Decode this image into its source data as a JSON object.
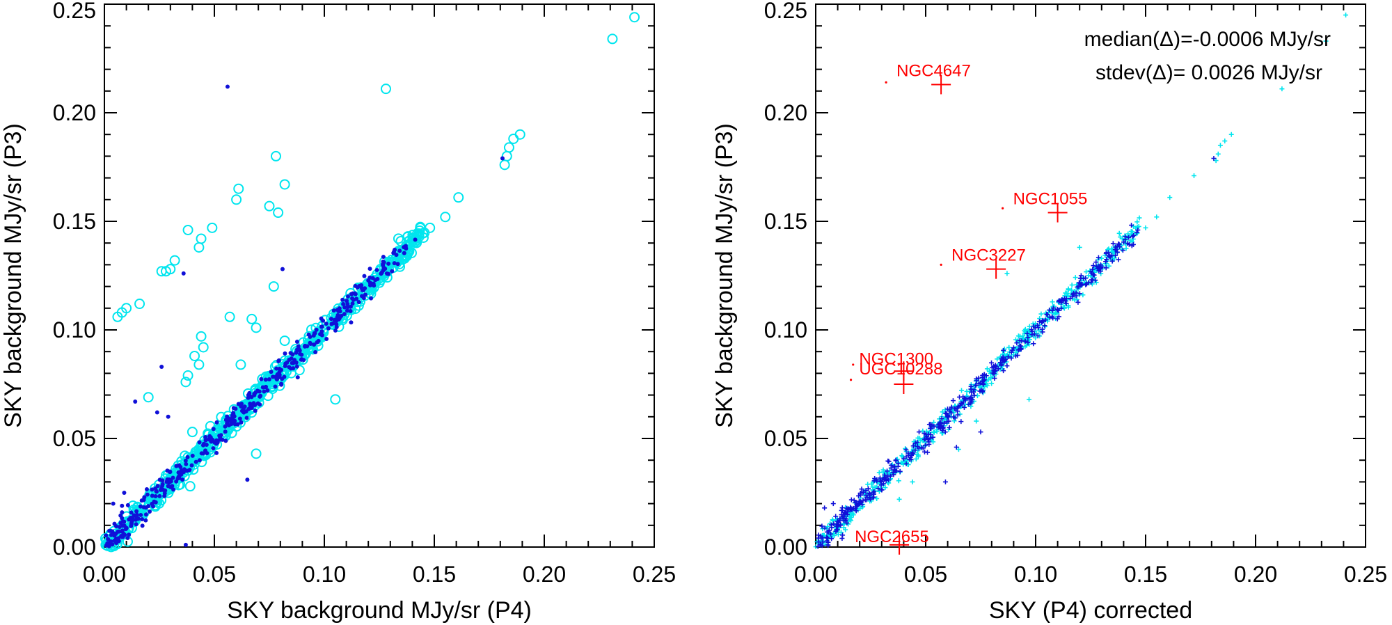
{
  "chart_data": [
    {
      "type": "scatter",
      "xlabel": "SKY background MJy/sr (P4)",
      "ylabel": "SKY background MJy/sr (P3)",
      "xlim": [
        0,
        0.25
      ],
      "ylim": [
        0,
        0.25
      ],
      "xticks": [
        "0.00",
        "0.05",
        "0.10",
        "0.15",
        "0.20",
        "0.25"
      ],
      "yticks": [
        "0.00",
        "0.05",
        "0.10",
        "0.15",
        "0.20",
        "0.25"
      ],
      "series": [
        {
          "name": "open circles",
          "marker": "circle-open",
          "color": "#00e5ee",
          "points": [
            [
              0.241,
              0.244
            ],
            [
              0.231,
              0.234
            ],
            [
              0.128,
              0.211
            ],
            [
              0.078,
              0.18
            ],
            [
              0.082,
              0.167
            ],
            [
              0.061,
              0.165
            ],
            [
              0.06,
              0.16
            ],
            [
              0.075,
              0.157
            ],
            [
              0.079,
              0.154
            ],
            [
              0.049,
              0.147
            ],
            [
              0.038,
              0.146
            ],
            [
              0.044,
              0.142
            ],
            [
              0.043,
              0.138
            ],
            [
              0.032,
              0.132
            ],
            [
              0.03,
              0.128
            ],
            [
              0.028,
              0.127
            ],
            [
              0.026,
              0.127
            ],
            [
              0.077,
              0.12
            ],
            [
              0.016,
              0.112
            ],
            [
              0.01,
              0.11
            ],
            [
              0.008,
              0.108
            ],
            [
              0.006,
              0.106
            ],
            [
              0.057,
              0.106
            ],
            [
              0.067,
              0.105
            ],
            [
              0.069,
              0.101
            ],
            [
              0.044,
              0.097
            ],
            [
              0.045,
              0.092
            ],
            [
              0.082,
              0.095
            ],
            [
              0.041,
              0.088
            ],
            [
              0.043,
              0.084
            ],
            [
              0.062,
              0.084
            ],
            [
              0.038,
              0.079
            ],
            [
              0.037,
              0.076
            ],
            [
              0.02,
              0.069
            ],
            [
              0.105,
              0.068
            ],
            [
              0.069,
              0.043
            ],
            [
              0.04,
              0.053
            ],
            [
              0.036,
              0.037
            ],
            [
              0.039,
              0.028
            ],
            [
              0.028,
              0.033
            ],
            [
              0.189,
              0.19
            ],
            [
              0.186,
              0.188
            ],
            [
              0.184,
              0.184
            ],
            [
              0.183,
              0.18
            ],
            [
              0.182,
              0.176
            ],
            [
              0.161,
              0.161
            ],
            [
              0.155,
              0.152
            ],
            [
              0.148,
              0.147
            ]
          ]
        },
        {
          "name": "dots",
          "marker": "dot",
          "color": "#1010d8",
          "points": [
            [
              0.056,
              0.212
            ],
            [
              0.181,
              0.179
            ],
            [
              0.081,
              0.128
            ],
            [
              0.036,
              0.126
            ],
            [
              0.026,
              0.083
            ],
            [
              0.014,
              0.067
            ],
            [
              0.024,
              0.062
            ],
            [
              0.029,
              0.06
            ],
            [
              0.004,
              0.02
            ],
            [
              0.008,
              0.019
            ],
            [
              0.037,
              0.001
            ],
            [
              0.065,
              0.031
            ],
            [
              0.009,
              0.025
            ],
            [
              0.008,
              0.016
            ]
          ]
        }
      ]
    },
    {
      "type": "scatter",
      "xlabel": "SKY (P4) corrected",
      "ylabel": "SKY background MJy/sr (P3)",
      "xlim": [
        0,
        0.25
      ],
      "ylim": [
        0,
        0.25
      ],
      "xticks": [
        "0.00",
        "0.05",
        "0.10",
        "0.15",
        "0.20",
        "0.25"
      ],
      "yticks": [
        "0.00",
        "0.05",
        "0.10",
        "0.15",
        "0.20",
        "0.25"
      ],
      "stats": [
        "median(Δ)=-0.0006 MJy/sr",
        "stdev(Δ)= 0.0026 MJy/sr"
      ],
      "series": [
        {
          "name": "cyan plus",
          "marker": "plus-small",
          "color": "#00e5ee",
          "points": [
            [
              0.241,
              0.245
            ],
            [
              0.212,
              0.211
            ],
            [
              0.189,
              0.19
            ],
            [
              0.186,
              0.187
            ],
            [
              0.184,
              0.185
            ],
            [
              0.183,
              0.181
            ],
            [
              0.182,
              0.178
            ],
            [
              0.172,
              0.171
            ],
            [
              0.161,
              0.161
            ],
            [
              0.155,
              0.152
            ],
            [
              0.15,
              0.147
            ],
            [
              0.12,
              0.138
            ],
            [
              0.087,
              0.126
            ],
            [
              0.073,
              0.058
            ],
            [
              0.097,
              0.068
            ],
            [
              0.065,
              0.045
            ],
            [
              0.038,
              0.022
            ],
            [
              0.044,
              0.03
            ],
            [
              0.232,
              0.233
            ]
          ]
        },
        {
          "name": "blue plus",
          "marker": "plus-small",
          "color": "#1010d8",
          "points": [
            [
              0.181,
              0.179
            ],
            [
              0.084,
              0.085
            ],
            [
              0.075,
              0.053
            ],
            [
              0.008,
              0.02
            ],
            [
              0.004,
              0.018
            ],
            [
              0.047,
              0.053
            ],
            [
              0.059,
              0.03
            ],
            [
              0.064,
              0.046
            ],
            [
              0.012,
              0.004
            ]
          ]
        },
        {
          "name": "outliers",
          "marker": "plus-large",
          "color": "#ff0000",
          "points": [
            [
              0.057,
              0.213
            ],
            [
              0.11,
              0.154
            ],
            [
              0.082,
              0.128
            ],
            [
              0.04,
              0.081
            ],
            [
              0.04,
              0.075
            ],
            [
              0.038,
              0.001
            ]
          ],
          "labels": [
            "NGC4647",
            "NGC1055",
            "NGC3227",
            "NGC1300",
            "UGC10288",
            "NGC2655"
          ]
        },
        {
          "name": "outlier origin dots",
          "marker": "dot-small",
          "color": "#ff0000",
          "points": [
            [
              0.032,
              0.214
            ],
            [
              0.085,
              0.156
            ],
            [
              0.057,
              0.13
            ],
            [
              0.017,
              0.084
            ],
            [
              0.016,
              0.077
            ]
          ]
        }
      ]
    }
  ]
}
